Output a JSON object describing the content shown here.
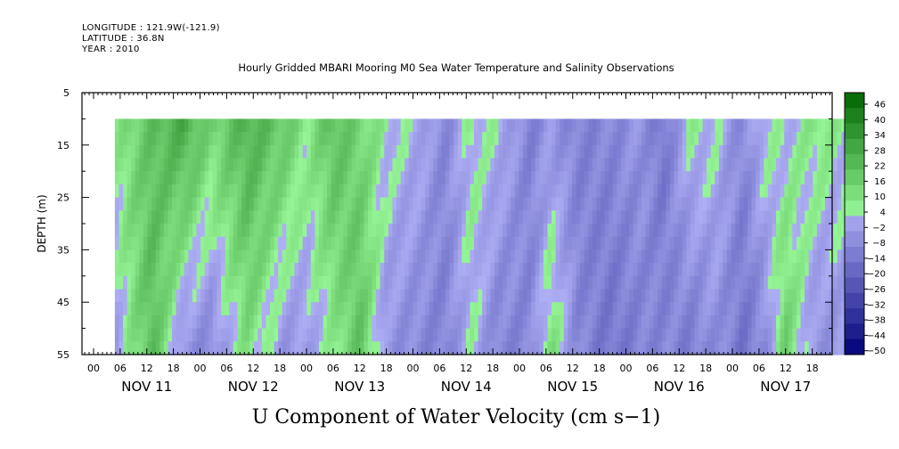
{
  "header": {
    "longitude": "LONGITUDE : 121.9W(-121.9)",
    "latitude": "LATITUDE : 36.8N",
    "year": "YEAR : 2010"
  },
  "chart_data": {
    "type": "heatmap",
    "title": "Hourly Gridded MBARI Mooring M0 Sea Water Temperature and Salinity Observations",
    "xlabel": "U Component of Water Velocity (cm s−1)",
    "ylabel": "DEPTH (m)",
    "y_range": [
      5,
      55
    ],
    "y_ticks": [
      "5",
      "15",
      "25",
      "35",
      "45",
      "55"
    ],
    "y_data_range": [
      10,
      55
    ],
    "x_hour_ticks": [
      "00",
      "06",
      "12",
      "18",
      "00",
      "06",
      "12",
      "18",
      "00",
      "06",
      "12",
      "18",
      "00",
      "06",
      "12",
      "18",
      "00",
      "06",
      "12",
      "18",
      "00",
      "06",
      "12",
      "18",
      "00",
      "06",
      "12",
      "18"
    ],
    "x_day_labels": [
      "NOV 11",
      "NOV 12",
      "NOV 13",
      "NOV 14",
      "NOV 15",
      "NOV 16",
      "NOV 17"
    ],
    "x_range_days": [
      0,
      7
    ],
    "data_start_day": 0.2,
    "data_end_day": 7.1,
    "colorbar": {
      "labels": [
        "46",
        "40",
        "34",
        "28",
        "22",
        "16",
        "10",
        "4",
        "−2",
        "−8",
        "−14",
        "−20",
        "−26",
        "−32",
        "−38",
        "−44",
        "−50"
      ],
      "min": -50,
      "max": 50
    },
    "column_profiles": [
      {
        "t": 0.2,
        "surface": 8,
        "bottom": -2
      },
      {
        "t": 0.55,
        "surface": 20,
        "bottom": 22
      },
      {
        "t": 0.85,
        "surface": 28,
        "bottom": -6
      },
      {
        "t": 1.1,
        "surface": 14,
        "bottom": -8
      },
      {
        "t": 1.45,
        "surface": 26,
        "bottom": 10
      },
      {
        "t": 1.8,
        "surface": 18,
        "bottom": -4
      },
      {
        "t": 2.0,
        "surface": 8,
        "bottom": -2
      },
      {
        "t": 2.25,
        "surface": 22,
        "bottom": 6
      },
      {
        "t": 2.5,
        "surface": 14,
        "bottom": 20
      },
      {
        "t": 2.75,
        "surface": 6,
        "bottom": -4
      },
      {
        "t": 3.05,
        "surface": 2,
        "bottom": -8
      },
      {
        "t": 3.3,
        "surface": -8,
        "bottom": -10
      },
      {
        "t": 3.55,
        "surface": 6,
        "bottom": 4
      },
      {
        "t": 3.8,
        "surface": 4,
        "bottom": -10
      },
      {
        "t": 4.1,
        "surface": -10,
        "bottom": -8
      },
      {
        "t": 4.3,
        "surface": -4,
        "bottom": 12
      },
      {
        "t": 4.55,
        "surface": -10,
        "bottom": -8
      },
      {
        "t": 4.85,
        "surface": -8,
        "bottom": -14
      },
      {
        "t": 5.15,
        "surface": -4,
        "bottom": -10
      },
      {
        "t": 5.35,
        "surface": -14,
        "bottom": -8
      },
      {
        "t": 5.6,
        "surface": 6,
        "bottom": -12
      },
      {
        "t": 5.85,
        "surface": 4,
        "bottom": -6
      },
      {
        "t": 6.1,
        "surface": -8,
        "bottom": -14
      },
      {
        "t": 6.3,
        "surface": 6,
        "bottom": -8
      },
      {
        "t": 6.5,
        "surface": 2,
        "bottom": 16
      },
      {
        "t": 6.8,
        "surface": 10,
        "bottom": -6
      },
      {
        "t": 7.1,
        "surface": 4,
        "bottom": -2
      }
    ]
  }
}
